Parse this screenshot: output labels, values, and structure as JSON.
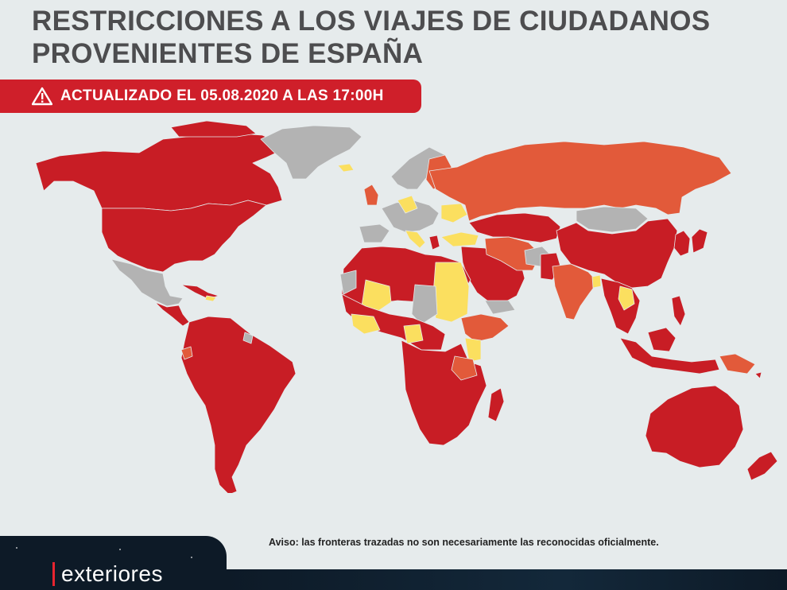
{
  "title_line1": "RESTRICCIONES A LOS VIAJES DE CIUDADANOS",
  "title_line2": "PROVENIENTES DE ESPAÑA",
  "banner": {
    "icon": "warning-icon",
    "text": "ACTUALIZADO EL 05.08.2020 A LAS 17:00H"
  },
  "disclaimer": "Aviso: las fronteras trazadas no son necesariamente las reconocidas oficialmente.",
  "logo_text": "exteriores",
  "colors": {
    "total_restriction": "#c81d25",
    "partial_restriction": "#e25a3a",
    "light_restriction": "#fbdf5f",
    "no_data": "#b3b3b3",
    "background": "#e6ebec",
    "banner": "#cf1f2a"
  }
}
